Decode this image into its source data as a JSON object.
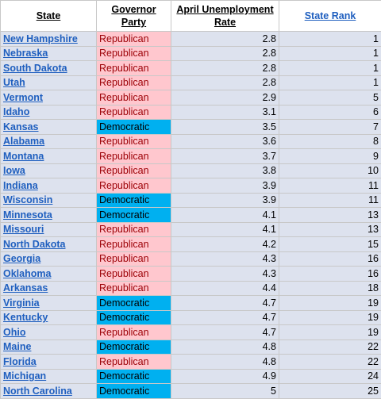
{
  "colors": {
    "republican_bg": "#ffc7ce",
    "republican_text": "#9c0006",
    "democratic_bg": "#00b0f0",
    "row_bg": "#dde2ee",
    "link": "#1f5fbf"
  },
  "headers": {
    "state": "State",
    "party": "Governor Party",
    "rate": "April Unemployment Rate",
    "rank": "State Rank"
  },
  "rows": [
    {
      "state": "New Hampshire",
      "party": "Republican",
      "rate": "2.8",
      "rank": "1"
    },
    {
      "state": "Nebraska",
      "party": "Republican",
      "rate": "2.8",
      "rank": "1"
    },
    {
      "state": "South Dakota",
      "party": "Republican",
      "rate": "2.8",
      "rank": "1"
    },
    {
      "state": "Utah",
      "party": "Republican",
      "rate": "2.8",
      "rank": "1"
    },
    {
      "state": "Vermont",
      "party": "Republican",
      "rate": "2.9",
      "rank": "5"
    },
    {
      "state": "Idaho",
      "party": "Republican",
      "rate": "3.1",
      "rank": "6"
    },
    {
      "state": "Kansas",
      "party": "Democratic",
      "rate": "3.5",
      "rank": "7"
    },
    {
      "state": "Alabama",
      "party": "Republican",
      "rate": "3.6",
      "rank": "8"
    },
    {
      "state": "Montana",
      "party": "Republican",
      "rate": "3.7",
      "rank": "9"
    },
    {
      "state": "Iowa",
      "party": "Republican",
      "rate": "3.8",
      "rank": "10"
    },
    {
      "state": "Indiana",
      "party": "Republican",
      "rate": "3.9",
      "rank": "11"
    },
    {
      "state": "Wisconsin",
      "party": "Democratic",
      "rate": "3.9",
      "rank": "11"
    },
    {
      "state": "Minnesota",
      "party": "Democratic",
      "rate": "4.1",
      "rank": "13"
    },
    {
      "state": "Missouri",
      "party": "Republican",
      "rate": "4.1",
      "rank": "13"
    },
    {
      "state": "North Dakota",
      "party": "Republican",
      "rate": "4.2",
      "rank": "15"
    },
    {
      "state": "Georgia",
      "party": "Republican",
      "rate": "4.3",
      "rank": "16"
    },
    {
      "state": "Oklahoma",
      "party": "Republican",
      "rate": "4.3",
      "rank": "16"
    },
    {
      "state": "Arkansas",
      "party": "Republican",
      "rate": "4.4",
      "rank": "18"
    },
    {
      "state": "Virginia",
      "party": "Democratic",
      "rate": "4.7",
      "rank": "19"
    },
    {
      "state": "Kentucky",
      "party": "Democratic",
      "rate": "4.7",
      "rank": "19"
    },
    {
      "state": "Ohio",
      "party": "Republican",
      "rate": "4.7",
      "rank": "19"
    },
    {
      "state": "Maine",
      "party": "Democratic",
      "rate": "4.8",
      "rank": "22"
    },
    {
      "state": "Florida",
      "party": "Republican",
      "rate": "4.8",
      "rank": "22"
    },
    {
      "state": "Michigan",
      "party": "Democratic",
      "rate": "4.9",
      "rank": "24"
    },
    {
      "state": "North Carolina",
      "party": "Democratic",
      "rate": "5",
      "rank": "25"
    }
  ]
}
